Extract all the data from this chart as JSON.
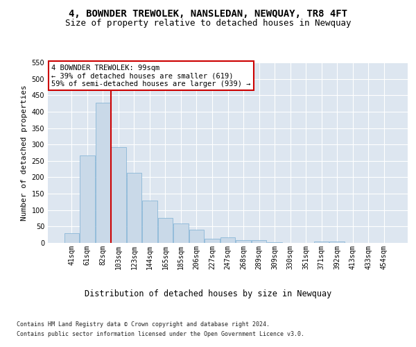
{
  "title": "4, BOWNDER TREWOLEK, NANSLEDAN, NEWQUAY, TR8 4FT",
  "subtitle": "Size of property relative to detached houses in Newquay",
  "xlabel": "Distribution of detached houses by size in Newquay",
  "ylabel": "Number of detached properties",
  "categories": [
    "41sqm",
    "61sqm",
    "82sqm",
    "103sqm",
    "123sqm",
    "144sqm",
    "165sqm",
    "185sqm",
    "206sqm",
    "227sqm",
    "247sqm",
    "268sqm",
    "289sqm",
    "309sqm",
    "330sqm",
    "351sqm",
    "371sqm",
    "392sqm",
    "413sqm",
    "433sqm",
    "454sqm"
  ],
  "values": [
    30,
    267,
    428,
    292,
    214,
    130,
    77,
    60,
    40,
    13,
    16,
    9,
    9,
    3,
    0,
    0,
    5,
    4,
    1,
    1,
    1
  ],
  "bar_color": "#c9d9e8",
  "bar_edge_color": "#7bafd4",
  "vline_x_index": 2.5,
  "vline_color": "#cc0000",
  "annotation_text": "4 BOWNDER TREWOLEK: 99sqm\n← 39% of detached houses are smaller (619)\n59% of semi-detached houses are larger (939) →",
  "annotation_box_color": "#ffffff",
  "annotation_box_edge": "#cc0000",
  "ylim": [
    0,
    550
  ],
  "yticks": [
    0,
    50,
    100,
    150,
    200,
    250,
    300,
    350,
    400,
    450,
    500,
    550
  ],
  "background_color": "#dde6f0",
  "footer_line1": "Contains HM Land Registry data © Crown copyright and database right 2024.",
  "footer_line2": "Contains public sector information licensed under the Open Government Licence v3.0.",
  "title_fontsize": 10,
  "subtitle_fontsize": 9,
  "tick_fontsize": 7,
  "ylabel_fontsize": 8,
  "xlabel_fontsize": 8.5,
  "annotation_fontsize": 7.5,
  "footer_fontsize": 6
}
